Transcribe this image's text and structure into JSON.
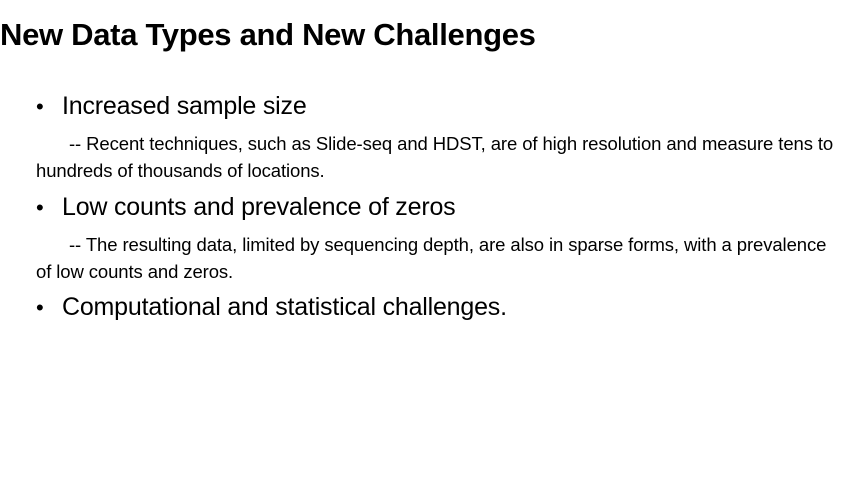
{
  "slide": {
    "title": "New Data Types and New Challenges",
    "bullet_glyph": "•",
    "items": [
      {
        "heading": "Increased sample size",
        "detail": "-- Recent techniques, such as Slide-seq and HDST, are of high resolution and measure tens to hundreds of thousands of locations."
      },
      {
        "heading": "Low counts and prevalence of zeros",
        "detail": "-- The resulting data, limited by sequencing depth, are also in sparse forms, with a prevalence of low counts and zeros."
      },
      {
        "heading": "Computational and statistical challenges."
      }
    ]
  }
}
